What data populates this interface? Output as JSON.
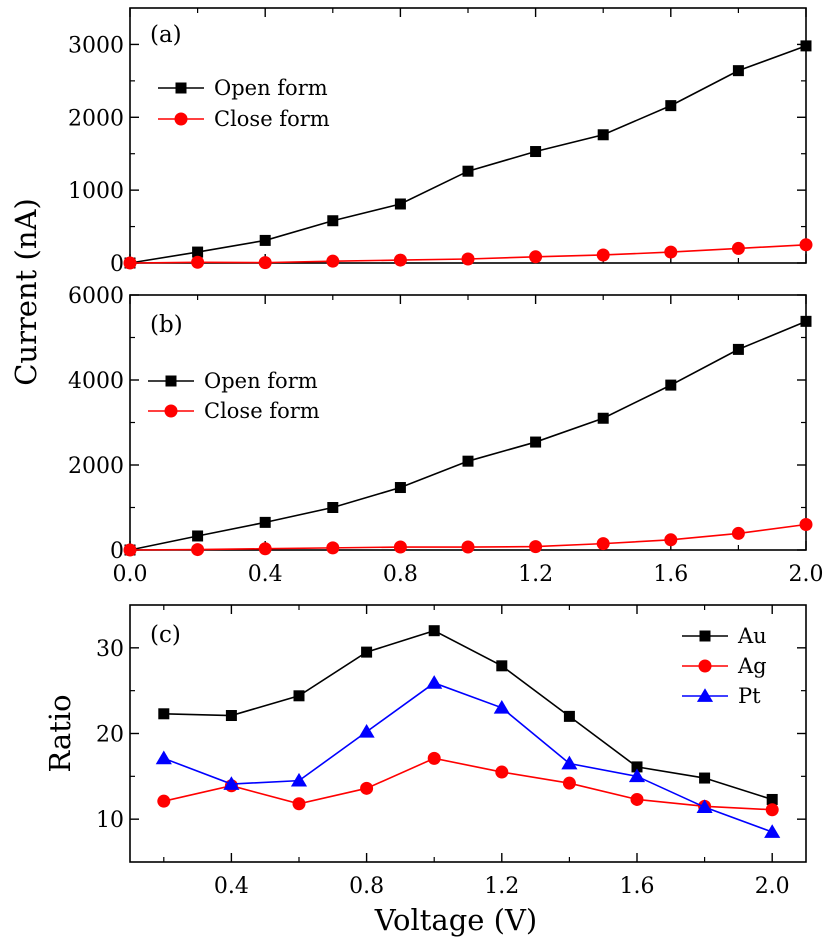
{
  "y_axis_shared_label": "Current (nA)",
  "chart_data": [
    {
      "panel": "(a)",
      "type": "line",
      "xlabel": "",
      "ylabel": "Current (nA)",
      "xlim": [
        0,
        2.0
      ],
      "ylim": [
        0,
        3500
      ],
      "x_ticks": [],
      "y_ticks": [
        0,
        1000,
        2000,
        3000
      ],
      "legend_position": "upper-left",
      "x": [
        0,
        0.2,
        0.4,
        0.6,
        0.8,
        1.0,
        1.2,
        1.4,
        1.6,
        1.8,
        2.0
      ],
      "series": [
        {
          "name": "Open form",
          "color": "#000000",
          "marker": "square",
          "values": [
            0,
            150,
            310,
            580,
            810,
            1260,
            1530,
            1760,
            2160,
            2640,
            2980
          ]
        },
        {
          "name": "Close form",
          "color": "#ff0000",
          "marker": "circle",
          "values": [
            0,
            10,
            5,
            25,
            40,
            55,
            85,
            110,
            150,
            200,
            250
          ]
        }
      ]
    },
    {
      "panel": "(b)",
      "type": "line",
      "xlabel": "",
      "ylabel": "Current (nA)",
      "xlim": [
        0,
        2.0
      ],
      "ylim": [
        0,
        6000
      ],
      "x_ticks": [
        "0.0",
        "0.4",
        "0.8",
        "1.2",
        "1.6",
        "2.0"
      ],
      "y_ticks": [
        0,
        2000,
        4000,
        6000
      ],
      "legend_position": "upper-left",
      "x": [
        0,
        0.2,
        0.4,
        0.6,
        0.8,
        1.0,
        1.2,
        1.4,
        1.6,
        1.8,
        2.0
      ],
      "series": [
        {
          "name": "Open form",
          "color": "#000000",
          "marker": "square",
          "values": [
            0,
            330,
            650,
            1000,
            1470,
            2090,
            2540,
            3100,
            3880,
            4720,
            5380
          ]
        },
        {
          "name": "Close form",
          "color": "#ff0000",
          "marker": "circle",
          "values": [
            0,
            10,
            30,
            50,
            70,
            70,
            80,
            150,
            240,
            390,
            600
          ]
        }
      ]
    },
    {
      "panel": "(c)",
      "type": "line",
      "xlabel": "Voltage (V)",
      "ylabel": "Ratio",
      "xlim": [
        0.1,
        2.1
      ],
      "ylim": [
        5,
        35
      ],
      "x_ticks": [
        "0.4",
        "0.8",
        "1.2",
        "1.6",
        "2.0"
      ],
      "y_ticks": [
        10,
        20,
        30
      ],
      "legend_position": "upper-right",
      "x": [
        0.2,
        0.4,
        0.6,
        0.8,
        1.0,
        1.2,
        1.4,
        1.6,
        1.8,
        2.0
      ],
      "series": [
        {
          "name": "Au",
          "color": "#000000",
          "marker": "square",
          "values": [
            22.3,
            22.1,
            24.4,
            29.5,
            32.0,
            27.9,
            22.0,
            16.1,
            14.8,
            12.3
          ]
        },
        {
          "name": "Ag",
          "color": "#ff0000",
          "marker": "circle",
          "values": [
            12.1,
            13.9,
            11.8,
            13.6,
            17.1,
            15.5,
            14.2,
            12.3,
            11.5,
            11.1
          ]
        },
        {
          "name": "Pt",
          "color": "#0000ff",
          "marker": "triangle",
          "values": [
            17.1,
            14.1,
            14.5,
            20.2,
            25.9,
            23.0,
            16.5,
            15.0,
            11.4,
            8.5
          ]
        }
      ]
    }
  ]
}
